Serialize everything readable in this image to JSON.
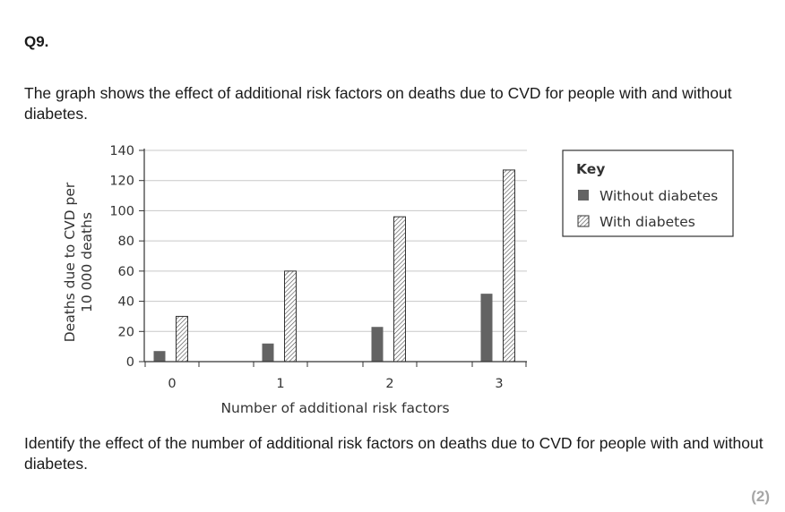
{
  "question": {
    "number": "Q9.",
    "intro": "The graph shows the effect of additional risk factors on deaths due to CVD for people with and without diabetes.",
    "prompt": "Identify the effect of the number of additional risk factors on deaths due to CVD for people with and without diabetes.",
    "marks": "(2)"
  },
  "colors": {
    "without": "#636363",
    "axis": "#333333",
    "grid": "#c8c8c8"
  },
  "chart_data": {
    "type": "bar",
    "title": "",
    "xlabel": "Number of additional risk factors",
    "ylabel_lines": [
      "Deaths due to CVD per",
      "10 000 deaths"
    ],
    "categories": [
      "0",
      "1",
      "2",
      "3"
    ],
    "ylim": [
      0,
      140
    ],
    "yticks": [
      0,
      20,
      40,
      60,
      80,
      100,
      120,
      140
    ],
    "grid": true,
    "series": [
      {
        "name": "Without diabetes",
        "pattern": "solid",
        "values": [
          7,
          12,
          23,
          45
        ]
      },
      {
        "name": "With diabetes",
        "pattern": "hatched",
        "values": [
          30,
          60,
          96,
          127
        ]
      }
    ],
    "legend": {
      "title": "Key",
      "placement": "top-right"
    }
  }
}
